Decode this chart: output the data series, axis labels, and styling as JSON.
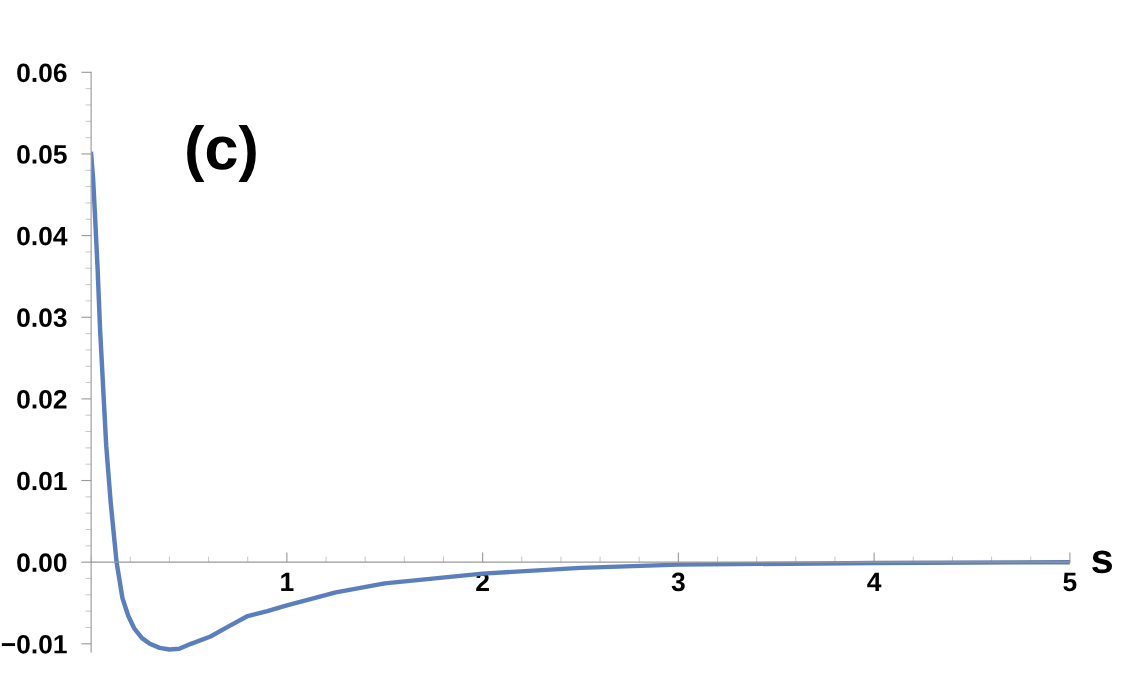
{
  "chart_data": {
    "type": "line",
    "xlabel": "s",
    "annotations": [
      "(c)"
    ],
    "x": [
      0,
      0.01,
      0.02,
      0.033,
      0.046,
      0.077,
      0.1,
      0.13,
      0.16,
      0.19,
      0.22,
      0.26,
      0.3,
      0.35,
      0.4,
      0.45,
      0.51,
      0.61,
      0.7,
      0.8,
      0.9,
      1,
      1.25,
      1.5,
      2,
      2.5,
      3,
      4,
      5
    ],
    "series": [
      {
        "color": "#5b7fbd",
        "values": [
          0.05,
          0.047,
          0.0424,
          0.036,
          0.0284,
          0.0143,
          0.0073,
          0,
          -0.0044,
          -0.0066,
          -0.0081,
          -0.0093,
          -0.01,
          -0.0105,
          -0.0107,
          -0.0106,
          -0.01,
          -0.0091,
          -0.0079,
          -0.0066,
          -0.006,
          -0.0053,
          -0.0037,
          -0.0026,
          -0.0014,
          -0.0007,
          -0.0003,
          -0.0001,
          0
        ]
      }
    ],
    "xlim": [
      0,
      5
    ],
    "ylim": [
      -0.011,
      0.06
    ],
    "xticks": [
      1,
      2,
      3,
      4,
      5
    ],
    "yticks": [
      {
        "value": -0.01,
        "label": "−0.01"
      },
      {
        "value": 0,
        "label": "0.00"
      },
      {
        "value": 0.01,
        "label": "0.01"
      },
      {
        "value": 0.02,
        "label": "0.02"
      },
      {
        "value": 0.03,
        "label": "0.03"
      },
      {
        "value": 0.04,
        "label": "0.04"
      },
      {
        "value": 0.05,
        "label": "0.05"
      },
      {
        "value": 0.06,
        "label": "0.06"
      }
    ],
    "grid": false,
    "legend": false,
    "marker": "none",
    "line_style": "solid"
  }
}
